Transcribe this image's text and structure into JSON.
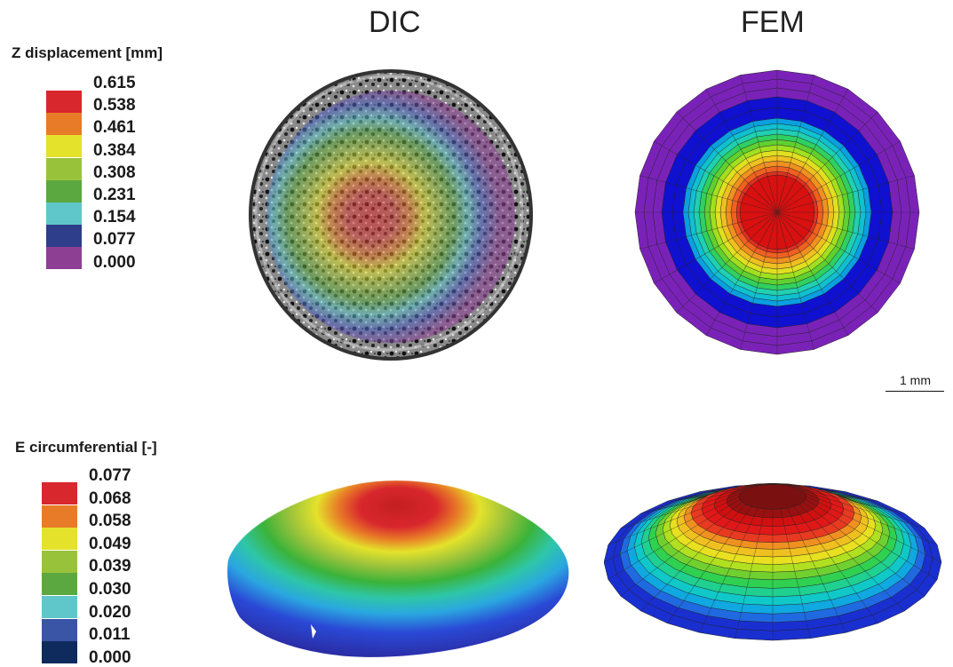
{
  "columns": {
    "left": "DIC",
    "right": "FEM"
  },
  "legend_top": {
    "title": "Z displacement [mm]",
    "ticks": [
      "0.615",
      "0.538",
      "0.461",
      "0.384",
      "0.308",
      "0.231",
      "0.154",
      "0.077",
      "0.000"
    ],
    "colors": [
      "#d8272d",
      "#e87b27",
      "#e4e22b",
      "#99c23b",
      "#5aa83f",
      "#5fc7c9",
      "#2e3e8a",
      "#8d3f94"
    ]
  },
  "legend_bottom": {
    "title": "E circumferential [-]",
    "ticks": [
      "0.077",
      "0.068",
      "0.058",
      "0.049",
      "0.039",
      "0.030",
      "0.020",
      "0.011",
      "0.000"
    ],
    "colors": [
      "#d8272d",
      "#e87b27",
      "#e4e22b",
      "#99c23b",
      "#5aa83f",
      "#5fc7c9",
      "#3a55a5",
      "#0f2a5c"
    ]
  },
  "scale_bar": {
    "label": "1 mm"
  }
}
